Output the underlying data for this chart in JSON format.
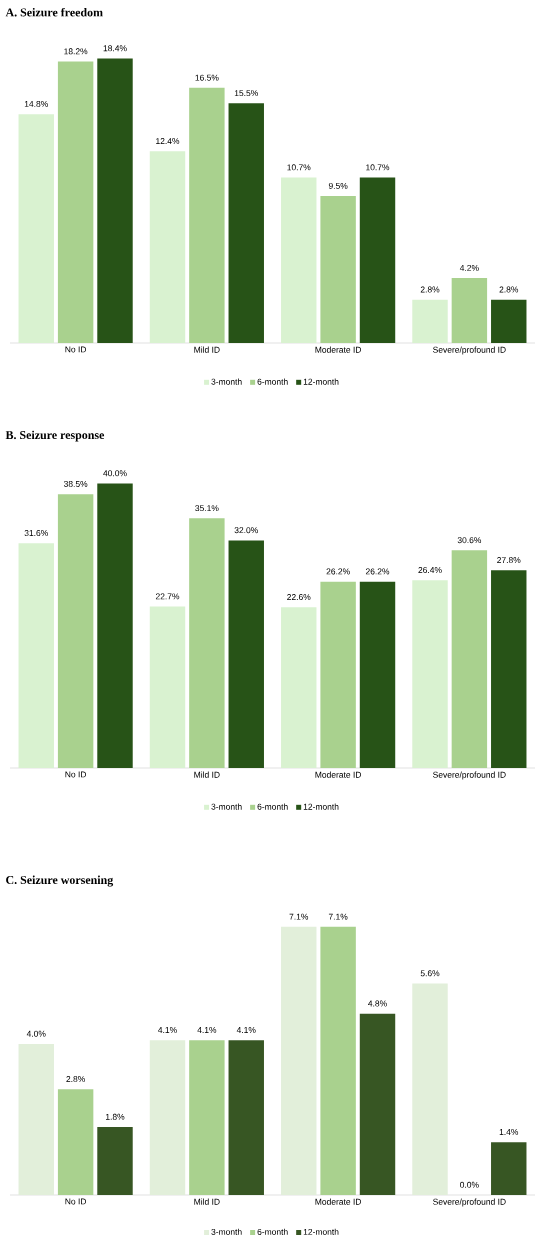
{
  "chart_data": [
    {
      "type": "bar",
      "title": "A.  Seizure freedom",
      "categories": [
        "No ID",
        "Mild ID",
        "Moderate ID",
        "Severe/profound ID"
      ],
      "legend": "bottom",
      "series": [
        {
          "name": "3-month",
          "color": "#d9f2d0",
          "values": [
            14.8,
            12.4,
            10.7,
            2.8
          ],
          "value_labels": [
            "14.8%",
            "12.4%",
            "10.7%",
            "2.8%"
          ]
        },
        {
          "name": "6-month",
          "color": "#a9d18e",
          "values": [
            18.2,
            16.5,
            9.5,
            4.2
          ],
          "value_labels": [
            "18.2%",
            "16.5%",
            "9.5%",
            "4.2%"
          ]
        },
        {
          "name": "12-month",
          "color": "#275317",
          "values": [
            18.4,
            15.5,
            10.7,
            2.8
          ],
          "value_labels": [
            "18.4%",
            "15.5%",
            "10.7%",
            "2.8%"
          ]
        }
      ]
    },
    {
      "type": "bar",
      "title": "B.  Seizure response",
      "categories": [
        "No ID",
        "Mild ID",
        "Moderate ID",
        "Severe/profound ID"
      ],
      "legend": "bottom",
      "series": [
        {
          "name": "3-month",
          "color": "#d9f2d0",
          "values": [
            31.6,
            22.7,
            22.6,
            26.4
          ],
          "value_labels": [
            "31.6%",
            "22.7%",
            "22.6%",
            "26.4%"
          ]
        },
        {
          "name": "6-month",
          "color": "#a9d18e",
          "values": [
            38.5,
            35.1,
            26.2,
            30.6
          ],
          "value_labels": [
            "38.5%",
            "35.1%",
            "26.2%",
            "30.6%"
          ]
        },
        {
          "name": "12-month",
          "color": "#275317",
          "values": [
            40.0,
            32.0,
            26.2,
            27.8
          ],
          "value_labels": [
            "40.0%",
            "32.0%",
            "26.2%",
            "27.8%"
          ]
        }
      ]
    },
    {
      "type": "bar",
      "title": "C.  Seizure worsening",
      "categories": [
        "No ID",
        "Mild ID",
        "Moderate ID",
        "Severe/profound ID"
      ],
      "legend": "bottom",
      "series": [
        {
          "name": "3-month",
          "color": "#e2efda",
          "values": [
            4.0,
            4.1,
            7.1,
            5.6
          ],
          "value_labels": [
            "4.0%",
            "4.1%",
            "7.1%",
            "5.6%"
          ]
        },
        {
          "name": "6-month",
          "color": "#a9d18e",
          "values": [
            2.8,
            4.1,
            7.1,
            0.0
          ],
          "value_labels": [
            "2.8%",
            "4.1%",
            "7.1%",
            "0.0%"
          ]
        },
        {
          "name": "12-month",
          "color": "#375623",
          "values": [
            1.8,
            4.1,
            4.8,
            1.4
          ],
          "value_labels": [
            "1.8%",
            "4.1%",
            "4.8%",
            "1.4%"
          ]
        }
      ]
    }
  ]
}
